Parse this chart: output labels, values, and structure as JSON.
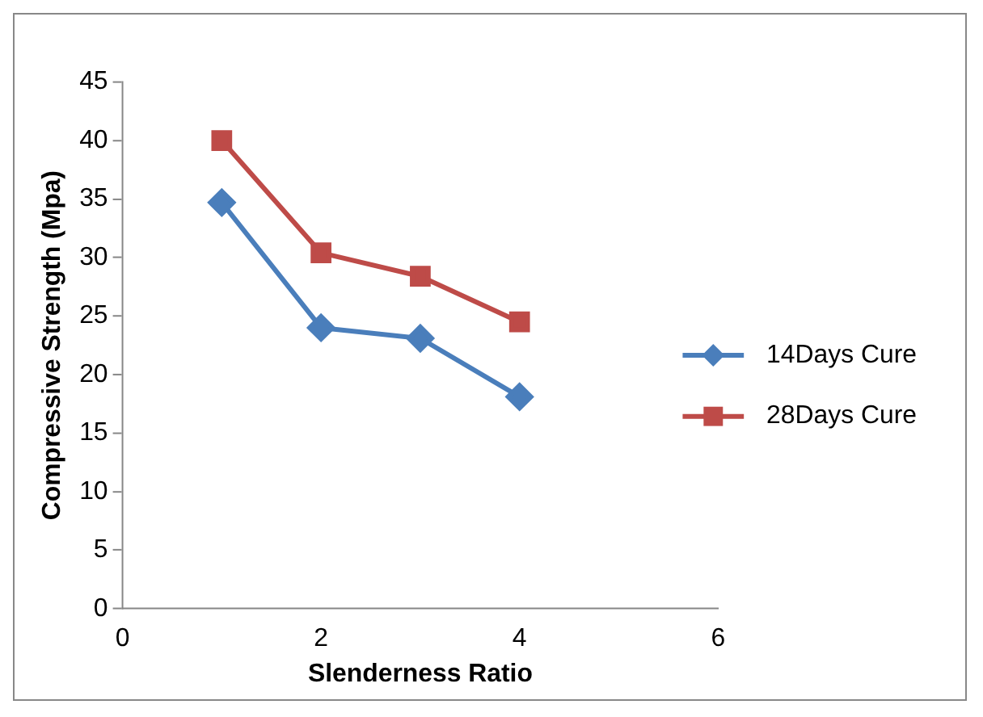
{
  "chart_data": {
    "type": "line",
    "xlabel": "Slenderness Ratio",
    "ylabel": "Compressive Strength (Mpa)",
    "x": [
      1,
      2,
      3,
      4
    ],
    "series": [
      {
        "name": "14Days Cure",
        "color": "#4a7ebb",
        "marker": "diamond",
        "values": [
          34.7,
          24,
          23.1,
          18.1
        ]
      },
      {
        "name": "28Days Cure",
        "color": "#be4b48",
        "marker": "square",
        "values": [
          40,
          30.4,
          28.4,
          24.5
        ]
      }
    ],
    "xlim": [
      0,
      6
    ],
    "xticks": [
      0,
      2,
      4,
      6
    ],
    "ylim": [
      0,
      45
    ],
    "yticks": [
      0,
      5,
      10,
      15,
      20,
      25,
      30,
      35,
      40,
      45
    ],
    "grid": false,
    "legend": "right",
    "line_style": "solid"
  }
}
